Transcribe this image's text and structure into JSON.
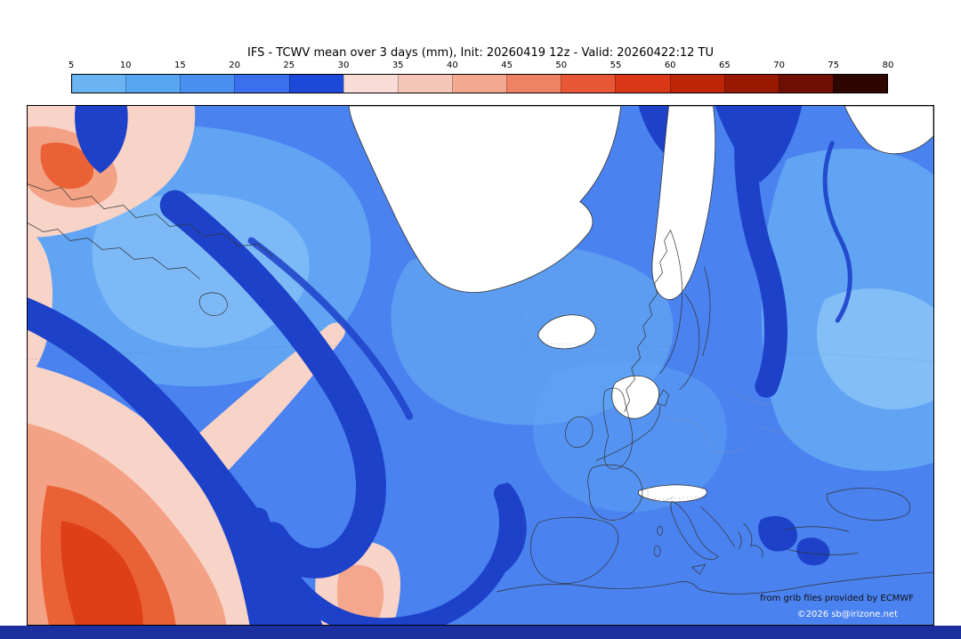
{
  "header": {
    "title": "IFS - TCWV mean over 3 days (mm), Init: 20260419 12z - Valid: 20260422:12 TU"
  },
  "colorbar": {
    "ticks": [
      "5",
      "10",
      "15",
      "20",
      "25",
      "30",
      "35",
      "40",
      "45",
      "50",
      "55",
      "60",
      "65",
      "70",
      "75",
      "80"
    ],
    "colors": [
      "#6ab4f3",
      "#58a5f1",
      "#4a90f0",
      "#3a70ee",
      "#1d49d8",
      "#f9dcd5",
      "#f6c6b9",
      "#f3a890",
      "#ef8265",
      "#e95836",
      "#d93715",
      "#bc2506",
      "#981901",
      "#6e0f01",
      "#2f0500"
    ]
  },
  "map": {
    "credit_source": "from grib files provided by ECMWF",
    "credit_copyright": "©2026 sb@irizone.net"
  },
  "chart_data": {
    "type": "heatmap",
    "title": "IFS - TCWV mean over 3 days (mm), Init: 20260419 12z - Valid: 20260422:12 TU",
    "model": "IFS",
    "variable": "Total column water vapour, mean over 3 days (mm)",
    "init_time": "20260419 12z",
    "valid_time": "20260422:12 TU",
    "region": "North Atlantic and Europe",
    "legend_position": "top",
    "colorbar": {
      "orientation": "horizontal",
      "ticks": [
        5,
        10,
        15,
        20,
        25,
        30,
        35,
        40,
        45,
        50,
        55,
        60,
        65,
        70,
        75,
        80
      ],
      "colors": [
        "#6ab4f3",
        "#58a5f1",
        "#4a90f0",
        "#3a70ee",
        "#1d49d8",
        "#f9dcd5",
        "#f6c6b9",
        "#f3a890",
        "#ef8265",
        "#e95836",
        "#d93715",
        "#bc2506",
        "#981901",
        "#6e0f01",
        "#2f0500"
      ]
    },
    "observed_pattern": [
      {
        "feature": "subtropical Atlantic moisture mass in the south-west corner",
        "tcwv_mm": "30-55",
        "appearance": "pink to orange-red"
      },
      {
        "feature": "cyclonic spiral of moist air in the central North Atlantic",
        "tcwv_mm": "25-30",
        "appearance": "dark blue band curling anticlockwise"
      },
      {
        "feature": "background values over most of the Atlantic and Europe",
        "tcwv_mm": "15-25",
        "appearance": "medium blue"
      },
      {
        "feature": "dry band along eastern Scandinavia / Baltic and Aegean spots",
        "tcwv_mm": "25-30",
        "appearance": "dark blue"
      },
      {
        "feature": "Greenland, Iceland, Scandinavian mountains, Alps, Arctic corner",
        "tcwv_mm": "< 5",
        "appearance": "white"
      }
    ],
    "credits": [
      "from grib files provided by ECMWF",
      "©2026 sb@irizone.net"
    ]
  }
}
